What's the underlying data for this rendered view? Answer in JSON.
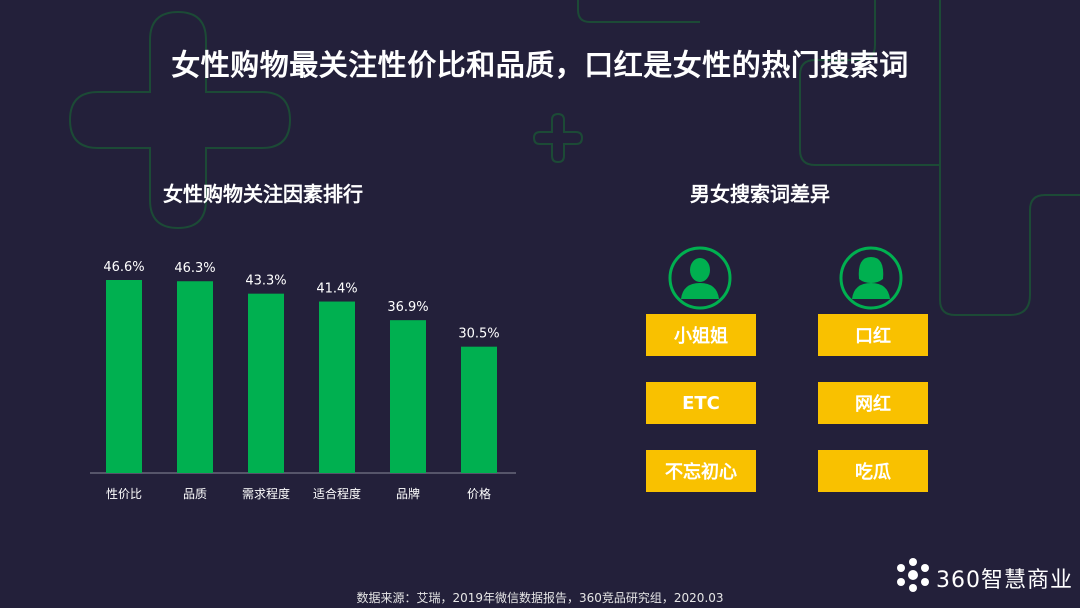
{
  "title": "女性购物最关注性价比和品质，口红是女性的热门搜索词",
  "left_section": {
    "title": "女性购物关注因素排行"
  },
  "right_section": {
    "title": "男女搜索词差异",
    "male_terms": [
      "小姐姐",
      "ETC",
      "不忘初心"
    ],
    "female_terms": [
      "口红",
      "网红",
      "吃瓜"
    ]
  },
  "chart_data": {
    "type": "bar",
    "title": "女性购物关注因素排行",
    "categories": [
      "性价比",
      "品质",
      "需求程度",
      "适合程度",
      "品牌",
      "价格"
    ],
    "values": [
      46.6,
      46.3,
      43.3,
      41.4,
      36.9,
      30.5
    ],
    "value_labels": [
      "46.6%",
      "46.3%",
      "43.3%",
      "41.4%",
      "36.9%",
      "30.5%"
    ],
    "ylim": [
      0,
      50
    ],
    "grid": false,
    "bar_color": "#00b050"
  },
  "colors": {
    "background": "#23203a",
    "bar": "#00b050",
    "tag": "#f9c100",
    "avatar": "#00b050"
  },
  "source": "数据来源：艾瑞，2019年微信数据报告，360竞品研究组，2020.03",
  "logo": {
    "text": "360智慧商业"
  }
}
